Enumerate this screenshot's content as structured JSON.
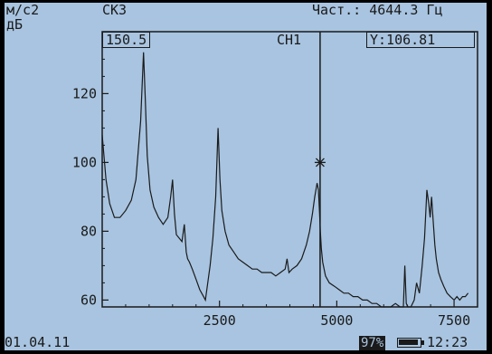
{
  "header": {
    "unit_top": "м/с2",
    "unit_bottom": "дБ",
    "mode": "СКЗ",
    "freq_readout": "Част.: 4644.3 Гц"
  },
  "plot_labels": {
    "cursor_x_value": "150.5",
    "channel": "CH1",
    "cursor_y_value": "Y:106.81"
  },
  "footer": {
    "date": "01.04.11",
    "battery_percent_label": "97%",
    "battery_level": 0.97,
    "time": "12:23"
  },
  "colors": {
    "screen_bg": "#a8c4e0",
    "ink": "#1a1a1a"
  },
  "chart_data": {
    "type": "line",
    "title": "",
    "xlabel": "",
    "ylabel": "дБ",
    "xlim": [
      0,
      8000
    ],
    "ylim": [
      58,
      138
    ],
    "x_ticks": [
      2500,
      5000,
      7500
    ],
    "y_ticks": [
      60,
      80,
      100,
      120
    ],
    "grid": false,
    "cursor_x": 4644.3,
    "cursor_y": 94.5,
    "series": [
      {
        "x": [
          0,
          80,
          160,
          260,
          380,
          500,
          620,
          720,
          820,
          880,
          920,
          960,
          1020,
          1100,
          1200,
          1300,
          1400,
          1460,
          1500,
          1540,
          1580,
          1640,
          1700,
          1750,
          1790,
          1820,
          1860,
          1920,
          2000,
          2080,
          2160,
          2200,
          2240,
          2300,
          2360,
          2420,
          2470,
          2510,
          2550,
          2620,
          2700,
          2800,
          2900,
          3000,
          3100,
          3200,
          3300,
          3400,
          3500,
          3600,
          3700,
          3800,
          3900,
          3940,
          3980,
          4050,
          4150,
          4250,
          4350,
          4420,
          4480,
          4530,
          4580,
          4610,
          4630,
          4650,
          4670,
          4700,
          4760,
          4840,
          4950,
          5050,
          5150,
          5250,
          5350,
          5450,
          5550,
          5650,
          5750,
          5850,
          5950,
          6050,
          6150,
          6250,
          6350,
          6420,
          6450,
          6480,
          6520,
          6580,
          6650,
          6700,
          6760,
          6820,
          6870,
          6920,
          6960,
          6990,
          7020,
          7050,
          7090,
          7120,
          7170,
          7220,
          7280,
          7350,
          7420,
          7500,
          7560,
          7620,
          7680,
          7740,
          7800
        ],
        "values": [
          108,
          95,
          88,
          84,
          84,
          86,
          89,
          95,
          112,
          132,
          118,
          102,
          92,
          87,
          84,
          82,
          84,
          90,
          95,
          85,
          79,
          78,
          77,
          82,
          74,
          72,
          71,
          69,
          66,
          63,
          61,
          60,
          64,
          70,
          78,
          90,
          110,
          95,
          86,
          80,
          76,
          74,
          72,
          71,
          70,
          69,
          69,
          68,
          68,
          68,
          67,
          68,
          69,
          72,
          68,
          69,
          70,
          72,
          76,
          80,
          85,
          90,
          94,
          92,
          86,
          80,
          75,
          71,
          67,
          65,
          64,
          63,
          62,
          62,
          61,
          61,
          60,
          60,
          59,
          59,
          58,
          58,
          58,
          59,
          58,
          58,
          70,
          59,
          58,
          58,
          60,
          65,
          62,
          70,
          78,
          92,
          88,
          84,
          90,
          84,
          76,
          72,
          68,
          66,
          64,
          62,
          61,
          60,
          61,
          60,
          61,
          61,
          62
        ]
      }
    ]
  }
}
